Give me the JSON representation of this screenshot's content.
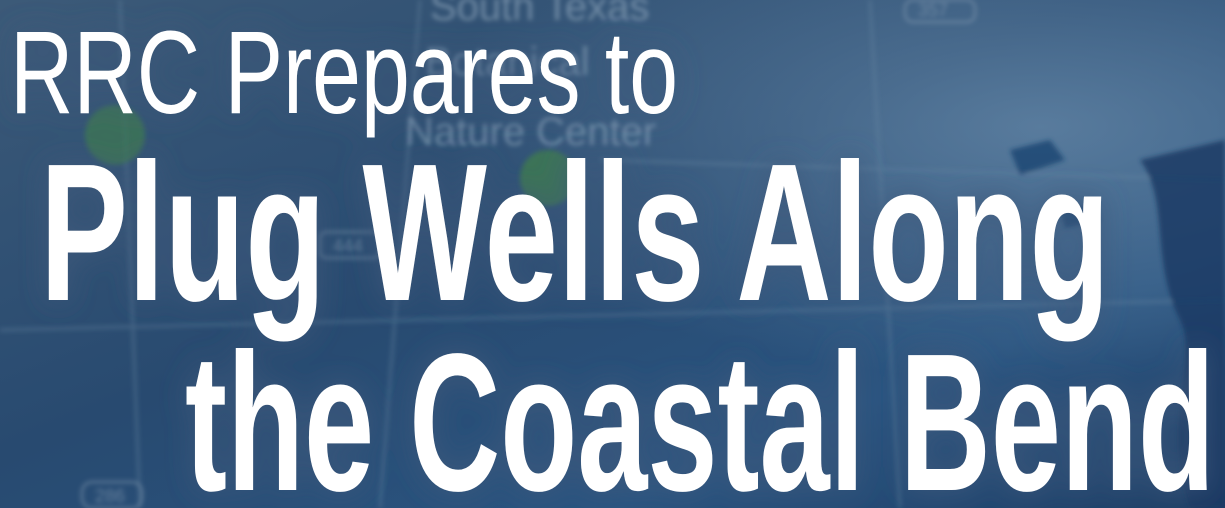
{
  "headline": {
    "lines": [
      "RRC Prepares to",
      "Plug Wells Along",
      "the Coastal Bend"
    ]
  },
  "map": {
    "labels": [
      "South Texas",
      "Botanical",
      "Nature Center"
    ],
    "routes": [
      "357",
      "444",
      "286"
    ]
  }
}
